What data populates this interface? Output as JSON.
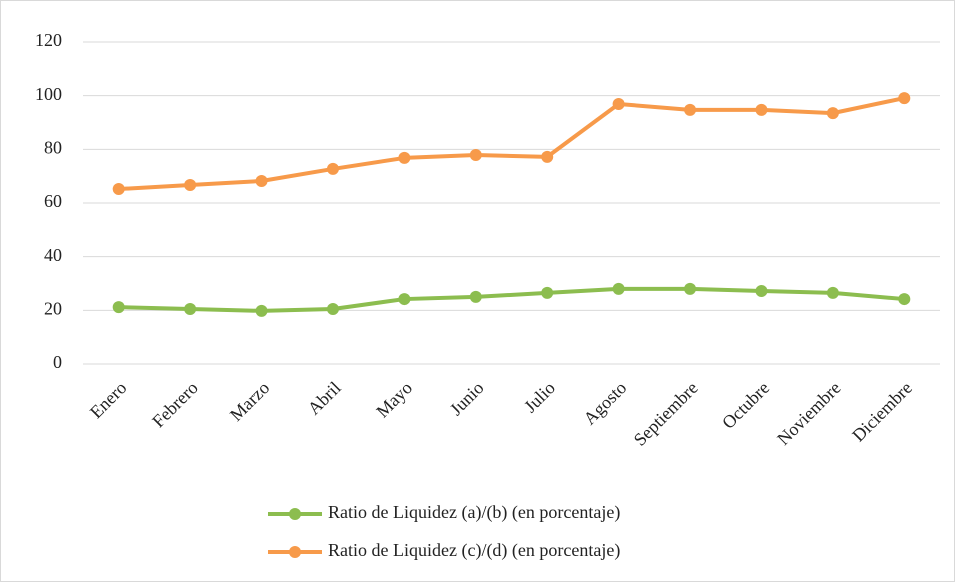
{
  "chart_data": {
    "type": "line",
    "categories": [
      "Enero",
      "Febrero",
      "Marzo",
      "Abril",
      "Mayo",
      "Junio",
      "Julio",
      "Agosto",
      "Septiembre",
      "Octubre",
      "Noviembre",
      "Diciembre"
    ],
    "series": [
      {
        "name": "Ratio de Liquidez (a)/(b) (en porcentaje)",
        "color": "#8cbd4f",
        "values": [
          21.2,
          20.5,
          19.8,
          20.5,
          24.2,
          25,
          26.5,
          28,
          28,
          27.2,
          26.5,
          24.2
        ]
      },
      {
        "name": "Ratio de Liquidez (c)/(d) (en porcentaje)",
        "color": "#f79a4a",
        "values": [
          65.2,
          66.7,
          68.2,
          72.7,
          76.8,
          77.9,
          77.2,
          96.9,
          94.7,
          94.7,
          93.5,
          99.1
        ]
      }
    ],
    "ylim": [
      0,
      120
    ],
    "yticks": [
      0,
      20,
      40,
      60,
      80,
      100,
      120
    ],
    "grid": true,
    "legend": "bottom"
  }
}
